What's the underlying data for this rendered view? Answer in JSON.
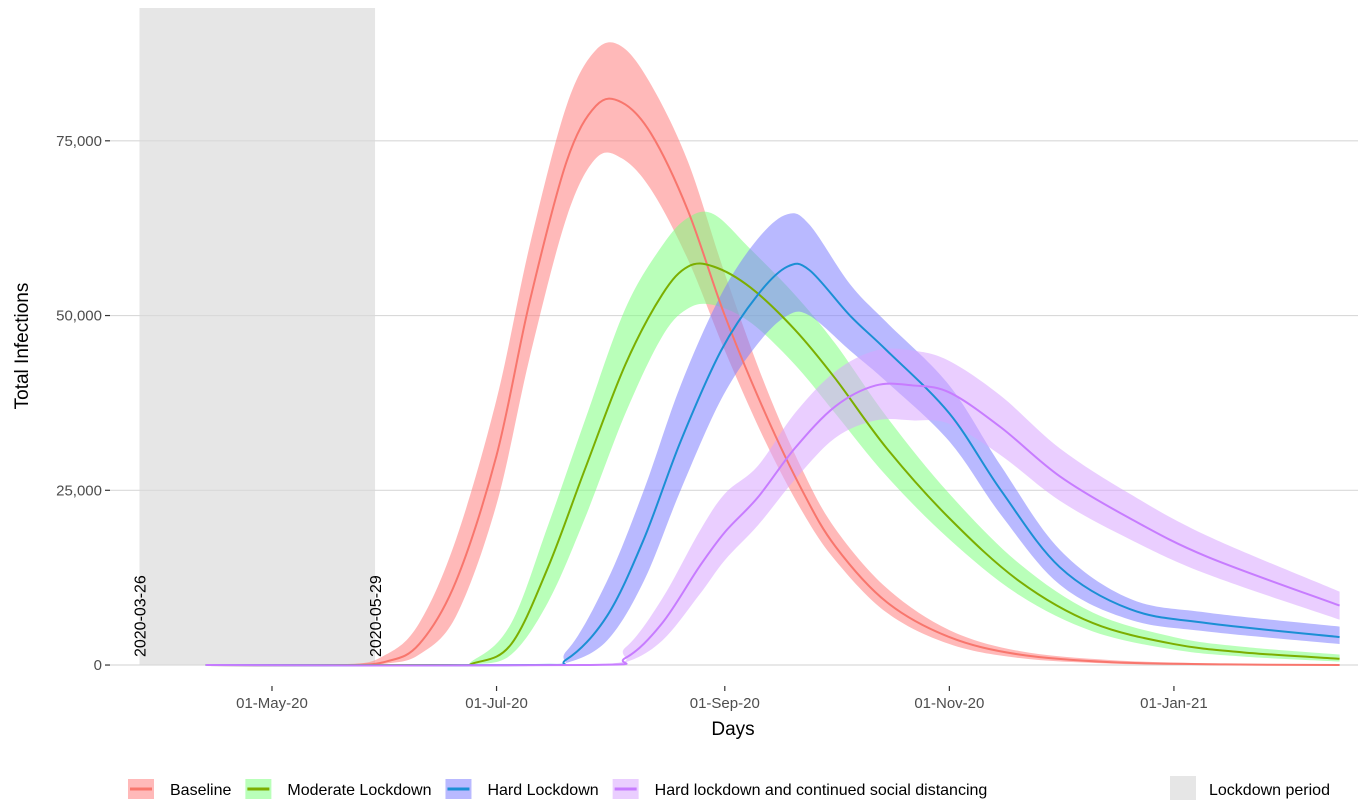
{
  "chart_data": {
    "type": "line",
    "title": "",
    "xlabel": "Days",
    "ylabel": "Total Infections",
    "x_type": "date",
    "xlim": [
      "2020-03-18",
      "2021-02-20"
    ],
    "ylim": [
      -3000,
      94000
    ],
    "x_ticks": [
      {
        "date": "2020-05-01",
        "label": "01-May-20"
      },
      {
        "date": "2020-07-01",
        "label": "01-Jul-20"
      },
      {
        "date": "2020-09-01",
        "label": "01-Sep-20"
      },
      {
        "date": "2020-11-01",
        "label": "01-Nov-20"
      },
      {
        "date": "2021-01-01",
        "label": "01-Jan-21"
      }
    ],
    "y_ticks": [
      {
        "value": 0,
        "label": "0"
      },
      {
        "value": 25000,
        "label": "25,000"
      },
      {
        "value": 50000,
        "label": "50,000"
      },
      {
        "value": 75000,
        "label": "75,000"
      }
    ],
    "grid": "horizontal major",
    "legend_position": "bottom",
    "shaded_region": {
      "start": "2020-03-26",
      "end": "2020-05-29",
      "label": "Lockdown period",
      "color": "#e6e6e6"
    },
    "annotations": [
      {
        "date": "2020-03-26",
        "text": "2020-03-26"
      },
      {
        "date": "2020-05-29",
        "text": "2020-05-29"
      }
    ],
    "series": [
      {
        "name": "Baseline",
        "color": "#f8766d",
        "band_color": "#ff7f7f",
        "points": [
          {
            "x": "2020-04-13",
            "y": 0,
            "lo": 0,
            "hi": 0
          },
          {
            "x": "2020-05-20",
            "y": 0,
            "lo": 0,
            "hi": 0
          },
          {
            "x": "2020-06-01",
            "y": 500,
            "lo": 200,
            "hi": 1500
          },
          {
            "x": "2020-06-10",
            "y": 3000,
            "lo": 1500,
            "hi": 6000
          },
          {
            "x": "2020-06-20",
            "y": 12000,
            "lo": 7000,
            "hi": 18000
          },
          {
            "x": "2020-07-01",
            "y": 30000,
            "lo": 23000,
            "hi": 38000
          },
          {
            "x": "2020-07-10",
            "y": 52000,
            "lo": 44000,
            "hi": 60000
          },
          {
            "x": "2020-07-20",
            "y": 72000,
            "lo": 64000,
            "hi": 80000
          },
          {
            "x": "2020-07-28",
            "y": 80000,
            "lo": 72500,
            "hi": 88000
          },
          {
            "x": "2020-08-04",
            "y": 80500,
            "lo": 72500,
            "hi": 88500
          },
          {
            "x": "2020-08-12",
            "y": 76000,
            "lo": 68000,
            "hi": 83000
          },
          {
            "x": "2020-08-22",
            "y": 65000,
            "lo": 58000,
            "hi": 72000
          },
          {
            "x": "2020-09-01",
            "y": 50000,
            "lo": 45000,
            "hi": 56000
          },
          {
            "x": "2020-09-12",
            "y": 36000,
            "lo": 32000,
            "hi": 40000
          },
          {
            "x": "2020-09-22",
            "y": 25000,
            "lo": 22000,
            "hi": 28000
          },
          {
            "x": "2020-10-01",
            "y": 17000,
            "lo": 15000,
            "hi": 19500
          },
          {
            "x": "2020-10-15",
            "y": 9000,
            "lo": 7500,
            "hi": 11000
          },
          {
            "x": "2020-11-01",
            "y": 4000,
            "lo": 3000,
            "hi": 5000
          },
          {
            "x": "2020-11-20",
            "y": 1500,
            "lo": 1000,
            "hi": 2000
          },
          {
            "x": "2020-12-15",
            "y": 400,
            "lo": 200,
            "hi": 700
          },
          {
            "x": "2021-01-15",
            "y": 100,
            "lo": 0,
            "hi": 200
          },
          {
            "x": "2021-02-15",
            "y": 0,
            "lo": 0,
            "hi": 50
          }
        ]
      },
      {
        "name": "Moderate Lockdown",
        "color": "#7cae00",
        "band_color": "#7fff7f",
        "points": [
          {
            "x": "2020-04-13",
            "y": 0,
            "lo": 0,
            "hi": 0
          },
          {
            "x": "2020-06-15",
            "y": 0,
            "lo": 0,
            "hi": 0
          },
          {
            "x": "2020-06-25",
            "y": 300,
            "lo": 100,
            "hi": 800
          },
          {
            "x": "2020-07-05",
            "y": 3000,
            "lo": 1500,
            "hi": 6000
          },
          {
            "x": "2020-07-15",
            "y": 14000,
            "lo": 9000,
            "hi": 20000
          },
          {
            "x": "2020-07-25",
            "y": 28000,
            "lo": 21000,
            "hi": 35000
          },
          {
            "x": "2020-08-05",
            "y": 43000,
            "lo": 36000,
            "hi": 51000
          },
          {
            "x": "2020-08-15",
            "y": 53000,
            "lo": 47000,
            "hi": 60000
          },
          {
            "x": "2020-08-22",
            "y": 57000,
            "lo": 51000,
            "hi": 64000
          },
          {
            "x": "2020-08-29",
            "y": 57000,
            "lo": 51500,
            "hi": 64500
          },
          {
            "x": "2020-09-08",
            "y": 54000,
            "lo": 49000,
            "hi": 59500
          },
          {
            "x": "2020-09-20",
            "y": 48000,
            "lo": 43000,
            "hi": 53000
          },
          {
            "x": "2020-10-01",
            "y": 41000,
            "lo": 36000,
            "hi": 46000
          },
          {
            "x": "2020-10-15",
            "y": 31000,
            "lo": 27000,
            "hi": 35500
          },
          {
            "x": "2020-11-01",
            "y": 21000,
            "lo": 18000,
            "hi": 24500
          },
          {
            "x": "2020-11-20",
            "y": 12000,
            "lo": 10000,
            "hi": 14500
          },
          {
            "x": "2020-12-10",
            "y": 6000,
            "lo": 4800,
            "hi": 7500
          },
          {
            "x": "2021-01-01",
            "y": 3000,
            "lo": 2200,
            "hi": 4000
          },
          {
            "x": "2021-01-20",
            "y": 1800,
            "lo": 1200,
            "hi": 2600
          },
          {
            "x": "2021-02-15",
            "y": 900,
            "lo": 500,
            "hi": 1500
          }
        ]
      },
      {
        "name": "Hard Lockdown",
        "color": "#1b8fd4",
        "band_color": "#7f7fff",
        "points": [
          {
            "x": "2020-04-13",
            "y": 0,
            "lo": 0,
            "hi": 0
          },
          {
            "x": "2020-07-10",
            "y": 0,
            "lo": 0,
            "hi": 0
          },
          {
            "x": "2020-07-20",
            "y": 800,
            "lo": 300,
            "hi": 2000
          },
          {
            "x": "2020-07-31",
            "y": 7000,
            "lo": 3500,
            "hi": 12000
          },
          {
            "x": "2020-08-10",
            "y": 18000,
            "lo": 12000,
            "hi": 25000
          },
          {
            "x": "2020-08-20",
            "y": 32000,
            "lo": 25000,
            "hi": 40000
          },
          {
            "x": "2020-08-31",
            "y": 45000,
            "lo": 38000,
            "hi": 53000
          },
          {
            "x": "2020-09-10",
            "y": 53000,
            "lo": 46000,
            "hi": 61000
          },
          {
            "x": "2020-09-18",
            "y": 57000,
            "lo": 50000,
            "hi": 64500
          },
          {
            "x": "2020-09-24",
            "y": 56500,
            "lo": 50000,
            "hi": 63000
          },
          {
            "x": "2020-10-05",
            "y": 50000,
            "lo": 45000,
            "hi": 54500
          },
          {
            "x": "2020-10-15",
            "y": 45000,
            "lo": 40500,
            "hi": 49000
          },
          {
            "x": "2020-11-01",
            "y": 36000,
            "lo": 32000,
            "hi": 40000
          },
          {
            "x": "2020-11-15",
            "y": 25000,
            "lo": 21500,
            "hi": 28500
          },
          {
            "x": "2020-12-01",
            "y": 14000,
            "lo": 11500,
            "hi": 16500
          },
          {
            "x": "2020-12-20",
            "y": 8000,
            "lo": 6500,
            "hi": 9500
          },
          {
            "x": "2021-01-10",
            "y": 6000,
            "lo": 4800,
            "hi": 7500
          },
          {
            "x": "2021-02-15",
            "y": 4000,
            "lo": 3000,
            "hi": 5500
          }
        ]
      },
      {
        "name": "Hard lockdown and continued social distancing",
        "color": "#c77cff",
        "band_color": "#d8a6ff",
        "points": [
          {
            "x": "2020-04-13",
            "y": 0,
            "lo": 0,
            "hi": 0
          },
          {
            "x": "2020-07-25",
            "y": 0,
            "lo": 0,
            "hi": 0
          },
          {
            "x": "2020-08-05",
            "y": 1000,
            "lo": 400,
            "hi": 2500
          },
          {
            "x": "2020-08-15",
            "y": 6000,
            "lo": 3500,
            "hi": 9500
          },
          {
            "x": "2020-08-25",
            "y": 14000,
            "lo": 10000,
            "hi": 19000
          },
          {
            "x": "2020-09-01",
            "y": 19000,
            "lo": 15000,
            "hi": 24500
          },
          {
            "x": "2020-09-10",
            "y": 24000,
            "lo": 20000,
            "hi": 28500
          },
          {
            "x": "2020-09-20",
            "y": 31000,
            "lo": 26500,
            "hi": 36000
          },
          {
            "x": "2020-10-01",
            "y": 37000,
            "lo": 32500,
            "hi": 42000
          },
          {
            "x": "2020-10-12",
            "y": 40000,
            "lo": 35000,
            "hi": 45000
          },
          {
            "x": "2020-10-22",
            "y": 40000,
            "lo": 35000,
            "hi": 45000
          },
          {
            "x": "2020-11-01",
            "y": 39000,
            "lo": 34500,
            "hi": 43500
          },
          {
            "x": "2020-11-15",
            "y": 34000,
            "lo": 30000,
            "hi": 38500
          },
          {
            "x": "2020-12-01",
            "y": 27000,
            "lo": 23500,
            "hi": 31000
          },
          {
            "x": "2020-12-20",
            "y": 21000,
            "lo": 18000,
            "hi": 24500
          },
          {
            "x": "2021-01-10",
            "y": 15500,
            "lo": 13000,
            "hi": 18500
          },
          {
            "x": "2021-02-15",
            "y": 8500,
            "lo": 6500,
            "hi": 10500
          }
        ]
      }
    ]
  }
}
